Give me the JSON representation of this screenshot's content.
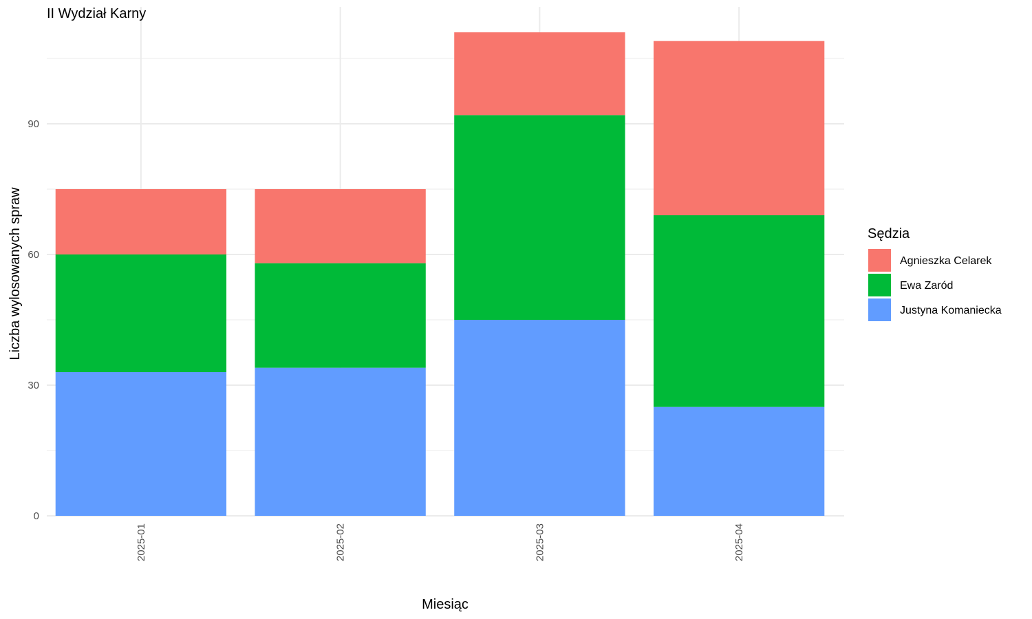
{
  "chart_data": {
    "type": "bar",
    "stacked": true,
    "title": "II Wydział Karny",
    "xlabel": "Miesiąc",
    "ylabel": "Liczba wylosowanych spraw",
    "categories": [
      "2025-01",
      "2025-02",
      "2025-03",
      "2025-04"
    ],
    "ylim": [
      0,
      116
    ],
    "yticks": [
      0,
      30,
      60,
      90
    ],
    "grid": true,
    "legend": {
      "title": "Sędzia",
      "position": "right"
    },
    "series": [
      {
        "name": "Justyna Komaniecka",
        "values": [
          33,
          34,
          45,
          25
        ],
        "color": "#619CFF"
      },
      {
        "name": "Ewa Zaród",
        "values": [
          27,
          24,
          47,
          44
        ],
        "color": "#00BA38"
      },
      {
        "name": "Agnieszka Celarek",
        "values": [
          15,
          17,
          19,
          40
        ],
        "color": "#F8766D"
      }
    ],
    "legend_order": [
      "Agnieszka Celarek",
      "Ewa Zaród",
      "Justyna Komaniecka"
    ]
  }
}
